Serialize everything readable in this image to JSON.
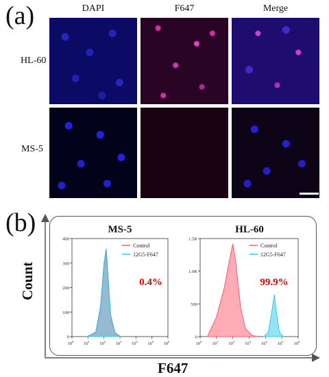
{
  "figure": {
    "panel_a": {
      "letter": "(a)",
      "columns": [
        "DAPI",
        "F647",
        "Merge"
      ],
      "rows": [
        "HL-60",
        "MS-5"
      ]
    },
    "panel_b": {
      "letter": "(b)",
      "y_title": "Count",
      "x_title": "F647"
    },
    "colors": {
      "control": "#ff5a6e",
      "treated": "#2ec8ee",
      "percent_text": "#e00000"
    }
  },
  "chart_data": [
    {
      "type": "area",
      "title": "MS-5",
      "x_scale": "log",
      "xlim": [
        1,
        1000000
      ],
      "ylim": [
        0,
        400
      ],
      "x_tick_labels": [
        "10^0",
        "10^1",
        "10^2",
        "10^3",
        "10^4",
        "10^5",
        "10^6"
      ],
      "y_tick_labels": [
        "0",
        "100",
        "200",
        "300",
        "400"
      ],
      "legend": [
        "Control",
        "12G5-F647"
      ],
      "annotation": "0.4%",
      "series": [
        {
          "name": "Control",
          "color": "#ff5a6e",
          "points": [
            [
              10,
              2
            ],
            [
              30,
              15
            ],
            [
              60,
              110
            ],
            [
              100,
              290
            ],
            [
              130,
              350
            ],
            [
              170,
              260
            ],
            [
              260,
              90
            ],
            [
              500,
              15
            ],
            [
              1000,
              2
            ]
          ]
        },
        {
          "name": "12G5-F647",
          "color": "#2ec8ee",
          "points": [
            [
              10,
              2
            ],
            [
              30,
              18
            ],
            [
              60,
              120
            ],
            [
              100,
              300
            ],
            [
              140,
              360
            ],
            [
              180,
              250
            ],
            [
              270,
              80
            ],
            [
              500,
              12
            ],
            [
              1000,
              2
            ]
          ]
        }
      ]
    },
    {
      "type": "area",
      "title": "HL-60",
      "x_scale": "log",
      "xlim": [
        1,
        1000000
      ],
      "ylim": [
        0,
        1500
      ],
      "x_tick_labels": [
        "10^0",
        "10^1",
        "10^2",
        "10^3",
        "10^4",
        "10^5",
        "10^6"
      ],
      "y_tick_labels": [
        "0",
        "500",
        "1.0K",
        "1.5K"
      ],
      "legend": [
        "Control",
        "12G5-F647"
      ],
      "annotation": "99.9%",
      "series": [
        {
          "name": "Control",
          "color": "#ff5a6e",
          "points": [
            [
              3,
              20
            ],
            [
              10,
              300
            ],
            [
              30,
              750
            ],
            [
              60,
              1150
            ],
            [
              100,
              1420
            ],
            [
              150,
              1150
            ],
            [
              300,
              450
            ],
            [
              600,
              120
            ],
            [
              1500,
              20
            ],
            [
              3000,
              0
            ]
          ]
        },
        {
          "name": "12G5-F647",
          "color": "#2ec8ee",
          "points": [
            [
              8000,
              0
            ],
            [
              15000,
              70
            ],
            [
              25000,
              400
            ],
            [
              35000,
              640
            ],
            [
              45000,
              400
            ],
            [
              70000,
              70
            ],
            [
              120000,
              0
            ]
          ]
        }
      ]
    }
  ]
}
